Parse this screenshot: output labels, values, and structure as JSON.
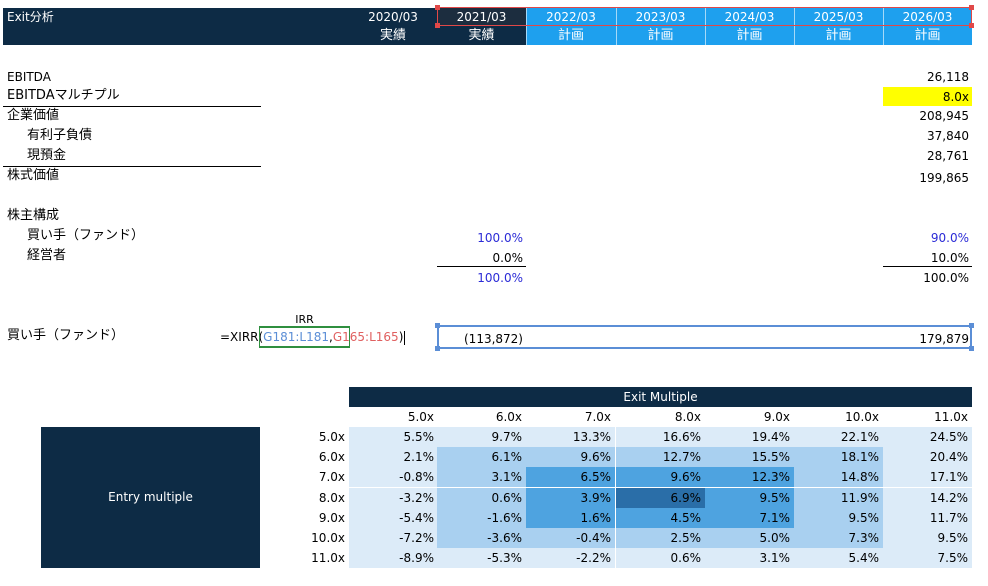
{
  "title": "Exit分析",
  "header": {
    "years": [
      "2020/03",
      "2021/03",
      "2022/03",
      "2023/03",
      "2024/03",
      "2025/03",
      "2026/03"
    ],
    "status": [
      "実績",
      "実績",
      "計画",
      "計画",
      "計画",
      "計画",
      "計画"
    ]
  },
  "valuation": {
    "ebitda_label": "EBITDA",
    "ebitda_value": "26,118",
    "multiple_label": "EBITDAマルチプル",
    "multiple_value": "8.0x",
    "ev_label": "企業価値",
    "ev_value": "208,945",
    "debt_label": "有利子負債",
    "debt_value": "37,840",
    "cash_label": "現預金",
    "cash_value": "28,761",
    "equity_label": "株式価値",
    "equity_value": "199,865"
  },
  "ownership": {
    "title": "株主構成",
    "buyer_label": "買い手（ファンド）",
    "buyer_2021": "100.0%",
    "buyer_2026": "90.0%",
    "mgmt_label": "経営者",
    "mgmt_2021": "0.0%",
    "mgmt_2026": "10.0%",
    "total_2021": "100.0%",
    "total_2026": "100.0%"
  },
  "irr": {
    "header": "IRR",
    "row_label": "買い手（ファンド）",
    "formula_prefix": "=XIRR(",
    "formula_arg1": "G181:L181",
    "formula_sep": ",",
    "formula_arg2": "G165:L165",
    "formula_suffix": ")",
    "cf_2021": "(113,872)",
    "cf_2026": "179,879"
  },
  "sensitivity": {
    "title": "Exit Multiple",
    "row_title": "Entry multiple",
    "exit_multiples": [
      "5.0x",
      "6.0x",
      "7.0x",
      "8.0x",
      "9.0x",
      "10.0x",
      "11.0x"
    ],
    "entry_multiples": [
      "5.0x",
      "6.0x",
      "7.0x",
      "8.0x",
      "9.0x",
      "10.0x",
      "11.0x"
    ],
    "rows": [
      [
        "5.5%",
        "9.7%",
        "13.3%",
        "16.6%",
        "19.4%",
        "22.1%",
        "24.5%"
      ],
      [
        "2.1%",
        "6.1%",
        "9.6%",
        "12.7%",
        "15.5%",
        "18.1%",
        "20.4%"
      ],
      [
        "-0.8%",
        "3.1%",
        "6.5%",
        "9.6%",
        "12.3%",
        "14.8%",
        "17.1%"
      ],
      [
        "-3.2%",
        "0.6%",
        "3.9%",
        "6.9%",
        "9.5%",
        "11.9%",
        "14.2%"
      ],
      [
        "-5.4%",
        "-1.6%",
        "1.6%",
        "4.5%",
        "7.1%",
        "9.5%",
        "11.7%"
      ],
      [
        "-7.2%",
        "-3.6%",
        "-0.4%",
        "2.5%",
        "5.0%",
        "7.3%",
        "9.5%"
      ],
      [
        "-8.9%",
        "-5.3%",
        "-2.2%",
        "0.6%",
        "3.1%",
        "5.4%",
        "7.5%"
      ]
    ],
    "shading": [
      [
        0,
        0,
        0,
        0,
        0,
        0,
        0
      ],
      [
        0,
        1,
        1,
        1,
        1,
        1,
        0
      ],
      [
        0,
        1,
        2,
        2,
        2,
        1,
        0
      ],
      [
        0,
        1,
        2,
        3,
        2,
        1,
        0
      ],
      [
        0,
        1,
        2,
        2,
        2,
        1,
        0
      ],
      [
        0,
        1,
        1,
        1,
        1,
        1,
        0
      ],
      [
        0,
        0,
        0,
        0,
        0,
        0,
        0
      ]
    ],
    "colors": [
      "#dcebf8",
      "#a9d0f0",
      "#4ea3e0",
      "#2a6ea8"
    ]
  },
  "colors": {
    "navy": "#0d2b45",
    "plan_blue": "#1ea0ee",
    "highlight_yellow": "#ffff00",
    "input_blue_text": "#2b2bd6",
    "selection_red": "#e04848",
    "range_blue": "#5b8ed6",
    "range_green": "#2f8f3f"
  }
}
